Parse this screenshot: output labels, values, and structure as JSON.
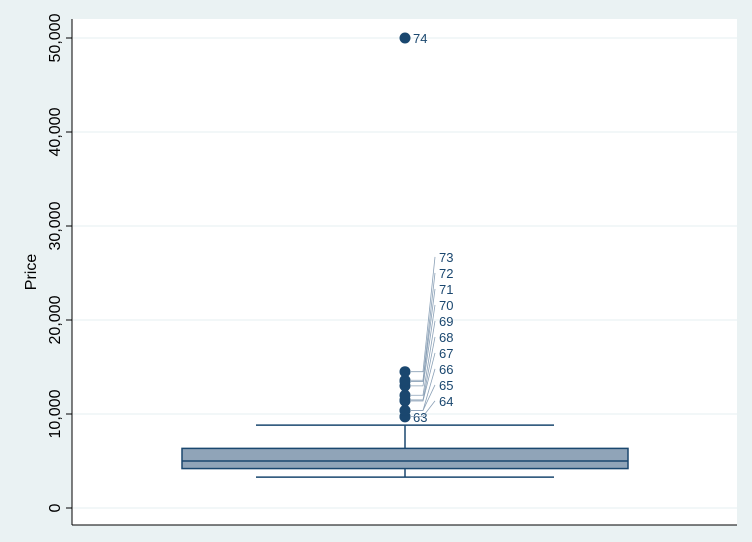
{
  "chart_data": {
    "type": "box",
    "ylabel": "Price",
    "xlabel": "",
    "ylim": [
      -2000,
      52000
    ],
    "yticks": [
      0,
      10000,
      20000,
      30000,
      40000,
      50000
    ],
    "ytick_labels": [
      "0",
      "10,000",
      "20,000",
      "30,000",
      "40,000",
      "50,000"
    ],
    "grid": true,
    "box": {
      "lower_whisker": 3291,
      "q1": 4195,
      "median": 5006.5,
      "q3": 6342,
      "upper_whisker": 8814
    },
    "outliers": [
      {
        "label": "63",
        "value": 9690
      },
      {
        "label": "64",
        "value": 9735
      },
      {
        "label": "65",
        "value": 10371
      },
      {
        "label": "66",
        "value": 10372
      },
      {
        "label": "67",
        "value": 11385
      },
      {
        "label": "68",
        "value": 11497
      },
      {
        "label": "69",
        "value": 11995
      },
      {
        "label": "70",
        "value": 12990
      },
      {
        "label": "71",
        "value": 13466
      },
      {
        "label": "72",
        "value": 13594
      },
      {
        "label": "73",
        "value": 14500
      },
      {
        "label": "74",
        "value": 50000
      }
    ],
    "colors": {
      "box_fill": "#90a4b8",
      "line": "#1a476f",
      "background": "#eaf2f3",
      "plot": "#ffffff",
      "grid": "#eaf2f3"
    }
  }
}
